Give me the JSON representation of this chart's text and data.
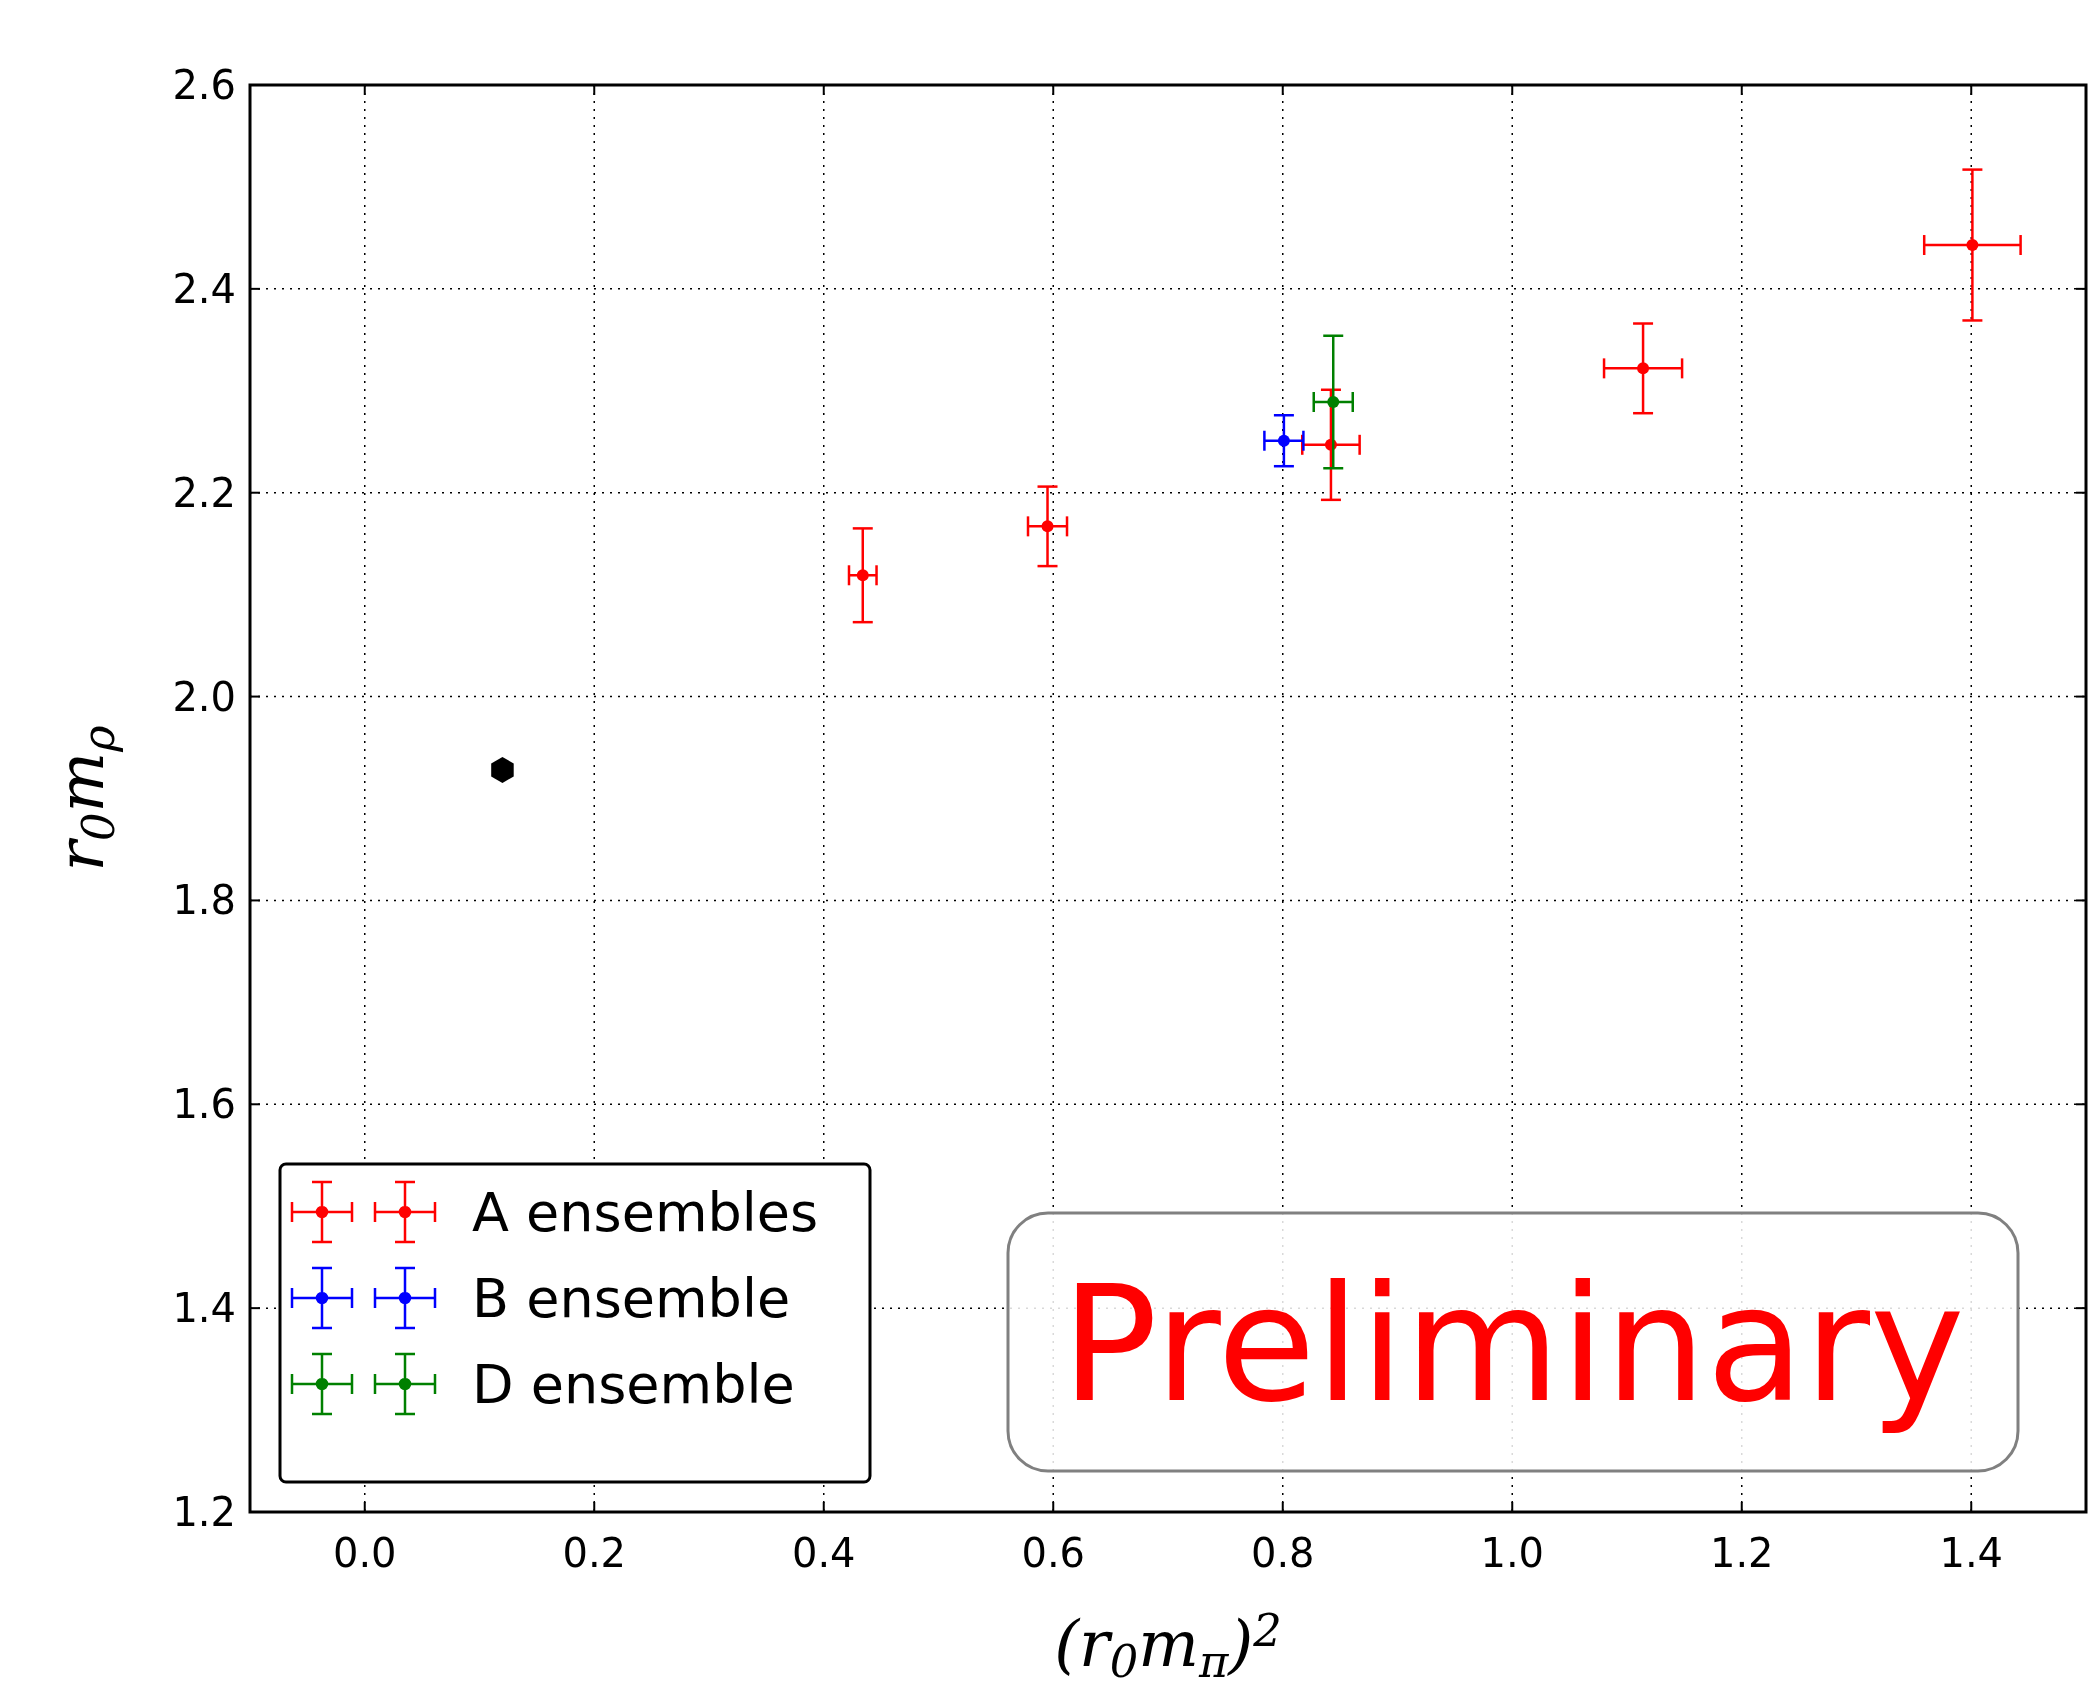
{
  "chart_data": {
    "type": "scatter",
    "xlabel": "(r$_{0}$m$_{π}$)$^{2}$",
    "ylabel": "r$_{0}$m$_{ρ}$",
    "xlim": [
      -0.1,
      1.5
    ],
    "ylim": [
      1.2,
      2.6
    ],
    "xticks": [
      {
        "value": 0,
        "label": "0.0"
      },
      0.2,
      0.4,
      0.6,
      0.8,
      {
        "value": 1,
        "label": "1.0"
      },
      1.2,
      1.4
    ],
    "yticks": [
      1.2,
      1.4,
      1.6,
      1.8,
      {
        "value": 2,
        "label": "2.0"
      },
      2.2,
      2.4,
      2.6
    ],
    "grid": true,
    "legend": "bottom left",
    "marker": "circle",
    "annotations": [
      "Preliminary"
    ],
    "series": [
      {
        "name": "A ensembles",
        "color": "#ff0000",
        "x": [
          0.434,
          0.595,
          0.842,
          1.114,
          1.401
        ],
        "values": [
          2.119,
          2.167,
          2.247,
          2.322,
          2.443
        ],
        "errors": [
          0.046,
          0.039,
          0.054,
          0.044,
          0.074
        ],
        "xerrors": [
          0.012,
          0.017,
          0.025,
          0.034,
          0.042
        ]
      },
      {
        "name": "B ensemble",
        "color": "#0000ff",
        "x": [
          0.801
        ],
        "values": [
          2.251
        ],
        "errors": [
          0.025
        ],
        "xerrors": [
          0.017
        ]
      },
      {
        "name": "D ensemble",
        "color": "#008000",
        "x": [
          0.844
        ],
        "values": [
          2.289
        ],
        "errors": [
          0.065
        ],
        "xerrors": [
          0.017
        ]
      },
      {
        "color": "#000000",
        "x": [
          0.12
        ],
        "values": [
          1.928
        ]
      }
    ]
  }
}
